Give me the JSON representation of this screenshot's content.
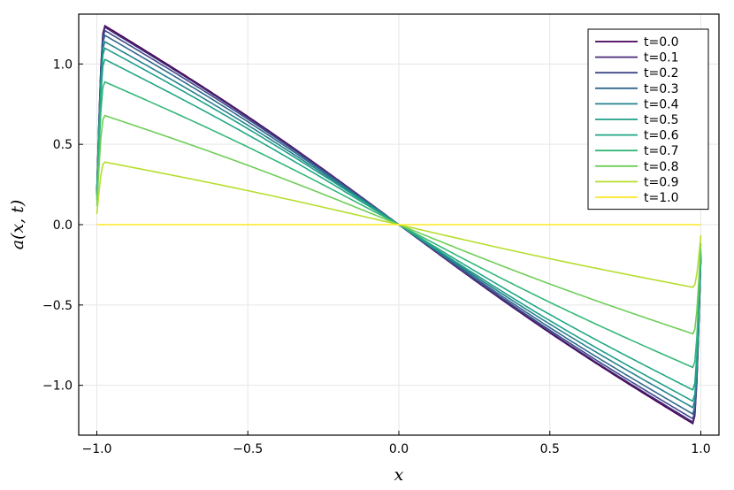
{
  "chart_data": {
    "type": "line",
    "xlabel": "x",
    "ylabel": "a(x, t)",
    "xlim": [
      -1.06,
      1.06
    ],
    "ylim": [
      -1.31,
      1.31
    ],
    "xticks": [
      -1.0,
      -0.5,
      0.0,
      0.5,
      1.0
    ],
    "xtick_labels": [
      "−1.0",
      "−0.5",
      "0.0",
      "0.5",
      "1.0"
    ],
    "yticks": [
      -1.0,
      -0.5,
      0.0,
      0.5,
      1.0
    ],
    "ytick_labels": [
      "−1.0",
      "−0.5",
      "0.0",
      "0.5",
      "1.0"
    ],
    "grid": true,
    "legend_position": "top-right",
    "series": [
      {
        "name": "t=0.0",
        "color": "#440154",
        "peak": 1.24
      },
      {
        "name": "t=0.1",
        "color": "#482878",
        "peak": 1.23
      },
      {
        "name": "t=0.2",
        "color": "#3e4989",
        "peak": 1.21
      },
      {
        "name": "t=0.3",
        "color": "#31688e",
        "peak": 1.18
      },
      {
        "name": "t=0.4",
        "color": "#26828e",
        "peak": 1.14
      },
      {
        "name": "t=0.5",
        "color": "#1f9e89",
        "peak": 1.1
      },
      {
        "name": "t=0.6",
        "color": "#21a685",
        "peak": 1.03
      },
      {
        "name": "t=0.7",
        "color": "#35b779",
        "peak": 0.89
      },
      {
        "name": "t=0.8",
        "color": "#6ece58",
        "peak": 0.68
      },
      {
        "name": "t=0.9",
        "color": "#b5de2b",
        "peak": 0.39
      },
      {
        "name": "t=1.0",
        "color": "#fde725",
        "peak": 0.0
      }
    ]
  }
}
